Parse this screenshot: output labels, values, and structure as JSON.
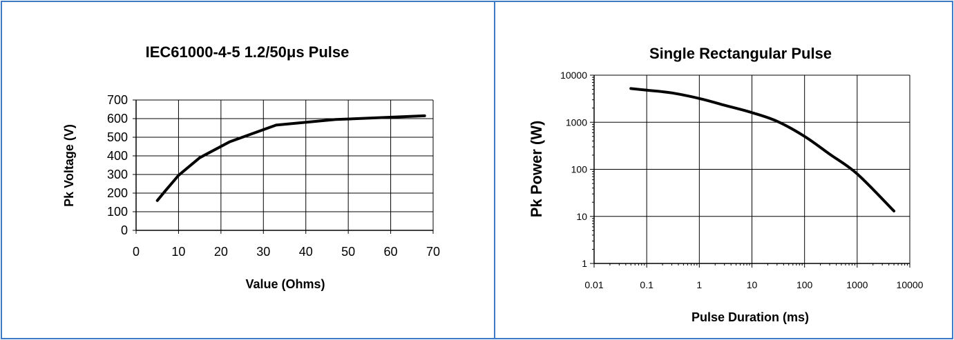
{
  "chart_data": [
    {
      "type": "line",
      "title": "IEC61000-4-5  1.2/50μs Pulse",
      "xlabel": "Value (Ohms)",
      "ylabel": "Pk Voltage (V)",
      "xlim": [
        0,
        70
      ],
      "ylim": [
        0,
        700
      ],
      "xticks": [
        "0",
        "10",
        "20",
        "30",
        "40",
        "50",
        "60",
        "70"
      ],
      "yticks": [
        "0",
        "100",
        "200",
        "300",
        "400",
        "500",
        "600",
        "700"
      ],
      "grid": true,
      "x": [
        5,
        6.8,
        10,
        15,
        22,
        33,
        47,
        68
      ],
      "y": [
        160,
        210,
        295,
        390,
        475,
        565,
        595,
        615
      ],
      "line_color": "#000000"
    },
    {
      "type": "line",
      "title": "Single Rectangular Pulse",
      "xlabel": "Pulse Duration (ms)",
      "ylabel": "Pk Power (W)",
      "xscale": "log",
      "yscale": "log",
      "xlim": [
        0.01,
        10000
      ],
      "ylim": [
        1,
        10000
      ],
      "xticks": [
        "0.01",
        "0.1",
        "1",
        "10",
        "100",
        "1000",
        "10000"
      ],
      "yticks": [
        "1",
        "10",
        "100",
        "1000",
        "10000"
      ],
      "grid": true,
      "x": [
        0.05,
        0.1,
        0.3,
        1,
        3,
        10,
        30,
        100,
        300,
        1000,
        5000
      ],
      "y": [
        5200,
        4800,
        4200,
        3200,
        2300,
        1600,
        1050,
        500,
        210,
        80,
        13
      ],
      "line_color": "#000000"
    }
  ]
}
